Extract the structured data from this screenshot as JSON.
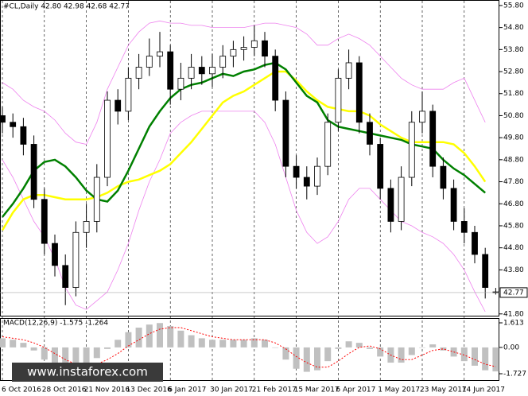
{
  "watermark": "www.instaforex.com",
  "chart_data": [
    {
      "type": "candlestick",
      "title": "#CL,Daily  42.80 42.98 42.68 42.77",
      "categories": [
        "6 Oct 2016",
        null,
        null,
        null,
        "28 Oct 2016",
        null,
        null,
        null,
        "21 Nov 2016",
        null,
        null,
        null,
        "13 Dec 2016",
        null,
        null,
        null,
        "6 Jan 2017",
        null,
        null,
        null,
        "30 Jan 2017",
        null,
        null,
        null,
        "21 Feb 2017",
        null,
        null,
        null,
        "15 Mar 2017",
        null,
        null,
        null,
        "6 Apr 2017",
        null,
        null,
        null,
        "1 May 2017",
        null,
        null,
        null,
        "23 May 2017",
        null,
        null,
        null,
        "14 Jun 2017",
        null,
        null,
        null
      ],
      "open": [
        50.8,
        50.5,
        50.3,
        49.5,
        47.0,
        45.0,
        44.0,
        43.0,
        45.5,
        46.0,
        48.0,
        51.5,
        51.0,
        52.5,
        53.0,
        53.5,
        53.7,
        52.0,
        52.5,
        53.0,
        52.7,
        53.0,
        53.5,
        53.8,
        53.9,
        54.2,
        53.5,
        51.5,
        48.5,
        48.0,
        47.6,
        48.5,
        50.5,
        52.5,
        53.2,
        50.5,
        49.5,
        47.5,
        46.0,
        48.0,
        50.5,
        51.0,
        48.5,
        47.5,
        46.0,
        45.5,
        44.5,
        42.8
      ],
      "high": [
        51.2,
        50.9,
        50.7,
        49.9,
        47.5,
        45.4,
        44.5,
        46.0,
        46.8,
        48.6,
        51.9,
        52.0,
        53.0,
        53.6,
        54.3,
        54.6,
        54.0,
        53.2,
        53.6,
        53.5,
        53.6,
        54.0,
        54.2,
        54.4,
        54.9,
        54.6,
        53.8,
        51.9,
        49.0,
        48.5,
        48.9,
        50.9,
        52.9,
        53.8,
        53.5,
        50.9,
        49.8,
        47.9,
        48.5,
        51.0,
        51.9,
        51.3,
        48.9,
        47.9,
        46.6,
        45.8,
        44.8,
        42.98
      ],
      "low": [
        50.0,
        49.8,
        49.0,
        46.6,
        44.5,
        43.5,
        42.2,
        42.6,
        44.8,
        45.5,
        47.6,
        50.4,
        50.6,
        52.0,
        52.6,
        53.0,
        51.3,
        51.5,
        52.0,
        52.2,
        52.1,
        52.5,
        53.0,
        53.3,
        53.5,
        53.0,
        51.0,
        48.0,
        47.5,
        47.0,
        47.2,
        48.1,
        50.1,
        52.0,
        50.0,
        49.0,
        47.0,
        45.5,
        45.6,
        47.6,
        50.0,
        48.0,
        47.0,
        45.6,
        45.0,
        44.1,
        42.5,
        42.68
      ],
      "close": [
        50.5,
        50.3,
        49.5,
        47.0,
        45.0,
        44.0,
        43.0,
        45.5,
        46.0,
        48.0,
        51.5,
        51.0,
        52.5,
        53.0,
        53.5,
        53.7,
        52.0,
        52.5,
        53.0,
        52.7,
        53.0,
        53.5,
        53.8,
        53.9,
        54.2,
        53.5,
        51.5,
        48.5,
        48.0,
        47.6,
        48.5,
        50.5,
        52.5,
        53.2,
        50.5,
        49.5,
        47.5,
        46.0,
        48.0,
        50.5,
        51.0,
        48.5,
        47.5,
        46.0,
        45.5,
        44.5,
        43.0,
        42.77
      ],
      "series": [
        {
          "color": "#ee82ee",
          "values": [
            52.3,
            52.0,
            51.5,
            51.2,
            51.0,
            50.6,
            50.0,
            49.6,
            49.5,
            50.5,
            52.0,
            53.0,
            54.0,
            54.6,
            55.0,
            55.1,
            55.0,
            55.0,
            54.9,
            54.9,
            54.8,
            54.8,
            54.8,
            54.8,
            54.9,
            55.0,
            55.0,
            54.9,
            54.8,
            54.5,
            54.0,
            54.0,
            54.3,
            54.5,
            54.3,
            54.0,
            53.5,
            53.0,
            52.5,
            52.2,
            52.0,
            52.0,
            52.0,
            52.3,
            52.5,
            51.5,
            50.5,
            null
          ]
        },
        {
          "color": "#ee82ee",
          "values": [
            48.8,
            48.0,
            47.0,
            46.0,
            45.3,
            44.3,
            43.0,
            42.2,
            42.0,
            42.4,
            42.8,
            43.8,
            45.0,
            46.5,
            47.8,
            48.8,
            50.0,
            50.5,
            50.8,
            51.0,
            51.0,
            51.0,
            51.0,
            51.0,
            51.0,
            50.5,
            49.5,
            48.0,
            46.5,
            45.5,
            45.0,
            45.3,
            46.0,
            47.0,
            47.5,
            47.5,
            47.0,
            46.5,
            46.0,
            45.8,
            45.5,
            45.3,
            45.0,
            44.5,
            43.8,
            42.8,
            41.9,
            null
          ]
        },
        {
          "color": "#ffff00",
          "values": [
            45.6,
            46.4,
            47.0,
            47.2,
            47.2,
            47.1,
            47.0,
            47.0,
            47.0,
            47.1,
            47.3,
            47.6,
            47.8,
            47.9,
            48.1,
            48.3,
            48.6,
            49.1,
            49.6,
            50.2,
            50.8,
            51.4,
            51.7,
            51.9,
            52.2,
            52.5,
            52.8,
            52.8,
            52.4,
            51.9,
            51.5,
            51.2,
            51.1,
            51.0,
            51.0,
            50.8,
            50.4,
            50.1,
            49.8,
            49.6,
            49.6,
            49.6,
            49.6,
            49.5,
            49.1,
            48.5,
            47.8,
            null
          ]
        },
        {
          "color": "#008000",
          "values": [
            46.2,
            46.8,
            47.5,
            48.3,
            48.7,
            48.8,
            48.5,
            48.0,
            47.4,
            47.0,
            46.9,
            47.4,
            48.3,
            49.3,
            50.3,
            51.0,
            51.6,
            52.0,
            52.2,
            52.3,
            52.5,
            52.7,
            52.6,
            52.8,
            52.9,
            53.1,
            53.2,
            52.9,
            52.3,
            51.7,
            51.4,
            50.6,
            50.3,
            50.2,
            50.1,
            50.0,
            49.9,
            49.8,
            49.7,
            49.5,
            49.4,
            49.3,
            48.8,
            48.4,
            48.1,
            47.7,
            47.3,
            null
          ]
        }
      ],
      "current_price": 42.77,
      "ylim": [
        41.72,
        56.05
      ],
      "yticks": [
        {
          "value": 55.8,
          "label": "55.80"
        },
        {
          "value": 54.8,
          "label": "54.80"
        },
        {
          "value": 53.8,
          "label": "53.80"
        },
        {
          "value": 52.8,
          "label": "52.80"
        },
        {
          "value": 51.8,
          "label": "51.80"
        },
        {
          "value": 50.8,
          "label": "50.80"
        },
        {
          "value": 49.8,
          "label": "49.80"
        },
        {
          "value": 48.8,
          "label": "48.80"
        },
        {
          "value": 47.8,
          "label": "47.80"
        },
        {
          "value": 46.8,
          "label": "46.80"
        },
        {
          "value": 45.8,
          "label": "45.80"
        },
        {
          "value": 44.8,
          "label": "44.80"
        },
        {
          "value": 43.8,
          "label": "43.80"
        },
        {
          "value": 41.8,
          "label": "41.80"
        }
      ]
    },
    {
      "type": "macd",
      "title": "MACD(12,26,9) -1.575 -1.264",
      "histogram_color": "#c0c0c0",
      "histogram_values": [
        0.6,
        0.5,
        0.3,
        -0.2,
        -0.8,
        -1.2,
        -1.5,
        -1.3,
        -1.0,
        -0.7,
        -0.1,
        0.5,
        1.0,
        1.3,
        1.5,
        1.6,
        1.4,
        1.1,
        0.8,
        0.6,
        0.5,
        0.5,
        0.5,
        0.5,
        0.6,
        0.5,
        0.0,
        -0.8,
        -1.4,
        -1.6,
        -1.5,
        -0.9,
        -0.1,
        0.4,
        0.3,
        -0.1,
        -0.6,
        -1.0,
        -1.0,
        -0.5,
        0.0,
        0.2,
        -0.2,
        -0.6,
        -0.9,
        -1.2,
        -1.5,
        -1.575
      ],
      "signal_color": "#ff0000",
      "signal_values": [
        0.7,
        0.6,
        0.5,
        0.3,
        0.0,
        -0.4,
        -0.8,
        -1.1,
        -1.2,
        -1.1,
        -0.8,
        -0.4,
        0.1,
        0.5,
        0.9,
        1.2,
        1.3,
        1.3,
        1.1,
        0.9,
        0.7,
        0.6,
        0.5,
        0.5,
        0.5,
        0.5,
        0.3,
        -0.1,
        -0.6,
        -1.0,
        -1.3,
        -1.3,
        -0.9,
        -0.4,
        0.0,
        0.1,
        -0.1,
        -0.5,
        -0.8,
        -0.8,
        -0.5,
        -0.2,
        -0.1,
        -0.3,
        -0.5,
        -0.8,
        -1.1,
        -1.264
      ],
      "ylim": [
        -2.145,
        1.926
      ],
      "yticks": [
        1.613,
        {
          "value": 0,
          "label": "0.00"
        },
        -1.727
      ]
    }
  ]
}
